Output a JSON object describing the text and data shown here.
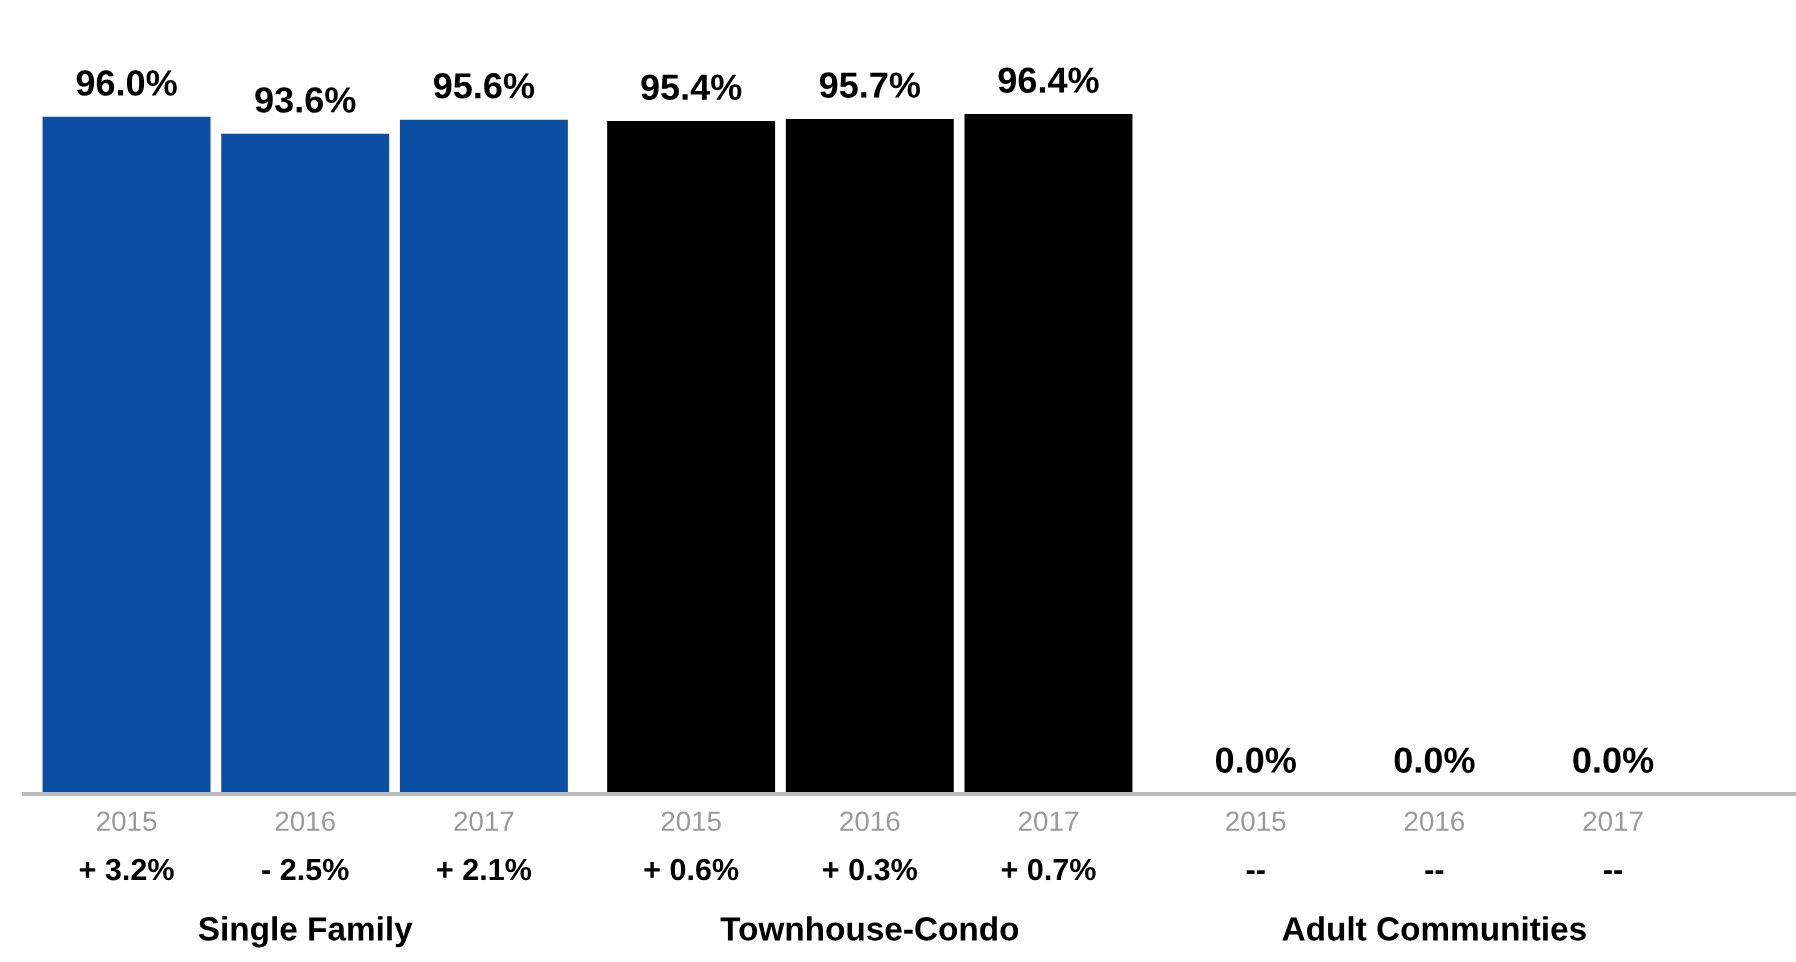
{
  "chart_data": {
    "type": "bar",
    "categories": [
      "2015",
      "2016",
      "2017",
      "2015",
      "2016",
      "2017",
      "2015",
      "2016",
      "2017"
    ],
    "values": [
      96.0,
      93.6,
      95.6,
      95.4,
      95.7,
      96.4,
      0.0,
      0.0,
      0.0
    ],
    "colors": [
      "#0b4ea2",
      "#0b4ea2",
      "#0b4ea2",
      "#000000",
      "#000000",
      "#000000",
      "#808080",
      "#808080",
      "#808080"
    ],
    "value_labels": [
      "96.0%",
      "93.6%",
      "95.6%",
      "95.4%",
      "95.7%",
      "96.4%",
      "0.0%",
      "0.0%",
      "0.0%"
    ],
    "tick_labels": "x",
    "grid": false,
    "annotations": [
      "+ 3.2%",
      "- 2.5%",
      "+ 2.1%",
      "+ 0.6%",
      "+ 0.3%",
      "+ 0.7%",
      "--",
      "--",
      "--",
      "Single Family",
      "Townhouse-Condo",
      "Adult Communities"
    ]
  }
}
